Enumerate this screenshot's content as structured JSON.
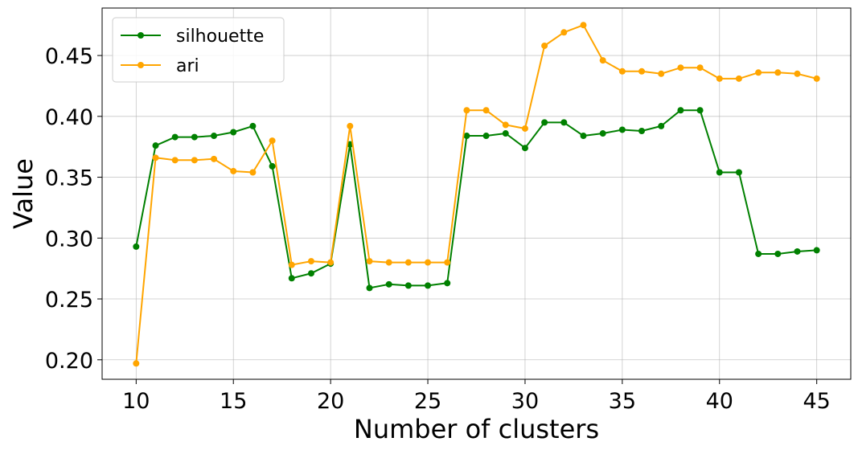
{
  "chart_data": {
    "type": "line",
    "xlabel": "Number of clusters",
    "ylabel": "Value",
    "x": [
      10,
      11,
      12,
      13,
      14,
      15,
      16,
      17,
      18,
      19,
      20,
      21,
      22,
      23,
      24,
      25,
      26,
      27,
      28,
      29,
      30,
      31,
      32,
      33,
      34,
      35,
      36,
      37,
      38,
      39,
      40,
      41,
      42,
      43,
      44,
      45
    ],
    "xlim": [
      8.25,
      46.75
    ],
    "ylim": [
      0.184,
      0.489
    ],
    "xticks": [
      10,
      15,
      20,
      25,
      30,
      35,
      40,
      45
    ],
    "xtick_labels": [
      "10",
      "15",
      "20",
      "25",
      "30",
      "35",
      "40",
      "45"
    ],
    "yticks": [
      0.2,
      0.25,
      0.3,
      0.35,
      0.4,
      0.45
    ],
    "ytick_labels": [
      "0.20",
      "0.25",
      "0.30",
      "0.35",
      "0.40",
      "0.45"
    ],
    "grid": true,
    "legend_position": "top-left",
    "series": [
      {
        "name": "silhouette",
        "color": "#008000",
        "values": [
          0.293,
          0.376,
          0.383,
          0.383,
          0.384,
          0.387,
          0.392,
          0.359,
          0.267,
          0.271,
          0.279,
          0.377,
          0.259,
          0.262,
          0.261,
          0.261,
          0.263,
          0.384,
          0.384,
          0.386,
          0.374,
          0.395,
          0.395,
          0.384,
          0.386,
          0.389,
          0.388,
          0.392,
          0.405,
          0.405,
          0.354,
          0.354,
          0.287,
          0.287,
          0.289,
          0.29
        ]
      },
      {
        "name": "ari",
        "color": "#FFA500",
        "values": [
          0.197,
          0.366,
          0.364,
          0.364,
          0.365,
          0.355,
          0.354,
          0.38,
          0.278,
          0.281,
          0.28,
          0.392,
          0.281,
          0.28,
          0.28,
          0.28,
          0.28,
          0.405,
          0.405,
          0.393,
          0.39,
          0.458,
          0.469,
          0.475,
          0.446,
          0.437,
          0.437,
          0.435,
          0.44,
          0.44,
          0.431,
          0.431,
          0.436,
          0.436,
          0.435,
          0.431
        ]
      }
    ]
  }
}
